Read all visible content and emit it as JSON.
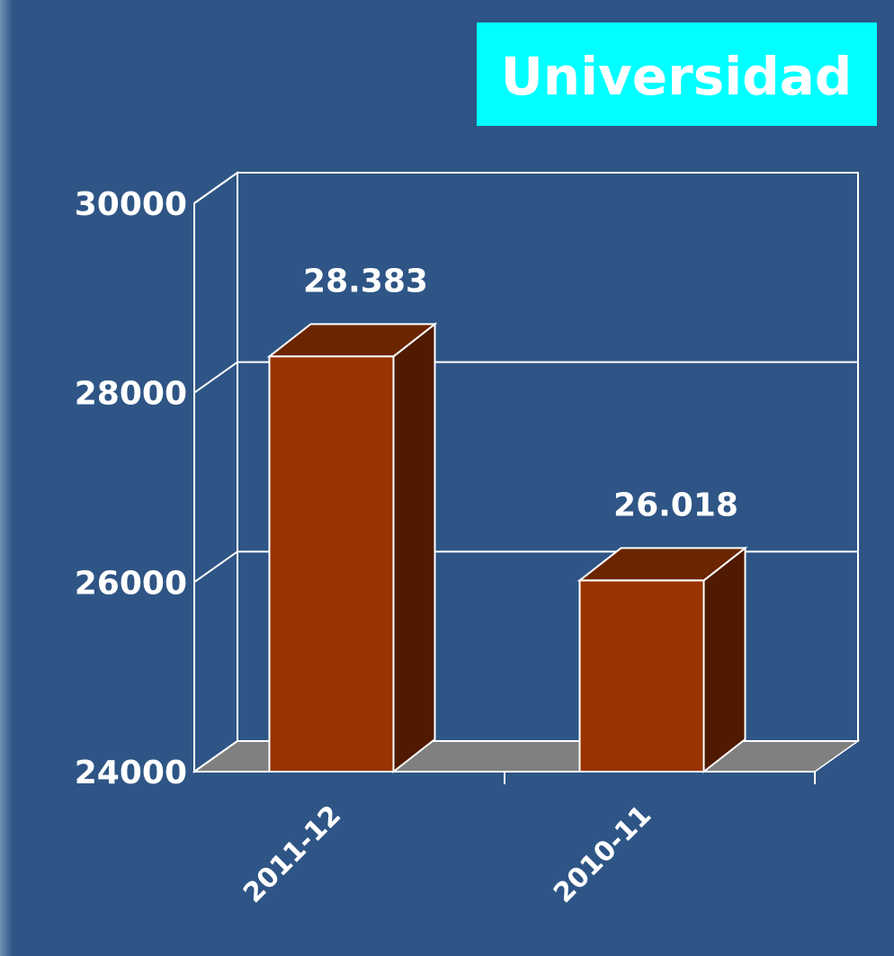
{
  "chart_data": {
    "type": "bar3d",
    "title": "Universidad",
    "categories": [
      "2011-12",
      "2010-11"
    ],
    "values": [
      28383,
      26018
    ],
    "value_labels": [
      "28.383",
      "26.018"
    ],
    "color": "#993300",
    "ylim": [
      24000,
      30000
    ],
    "yticks": [
      24000,
      26000,
      28000,
      30000
    ],
    "grid": true
  }
}
